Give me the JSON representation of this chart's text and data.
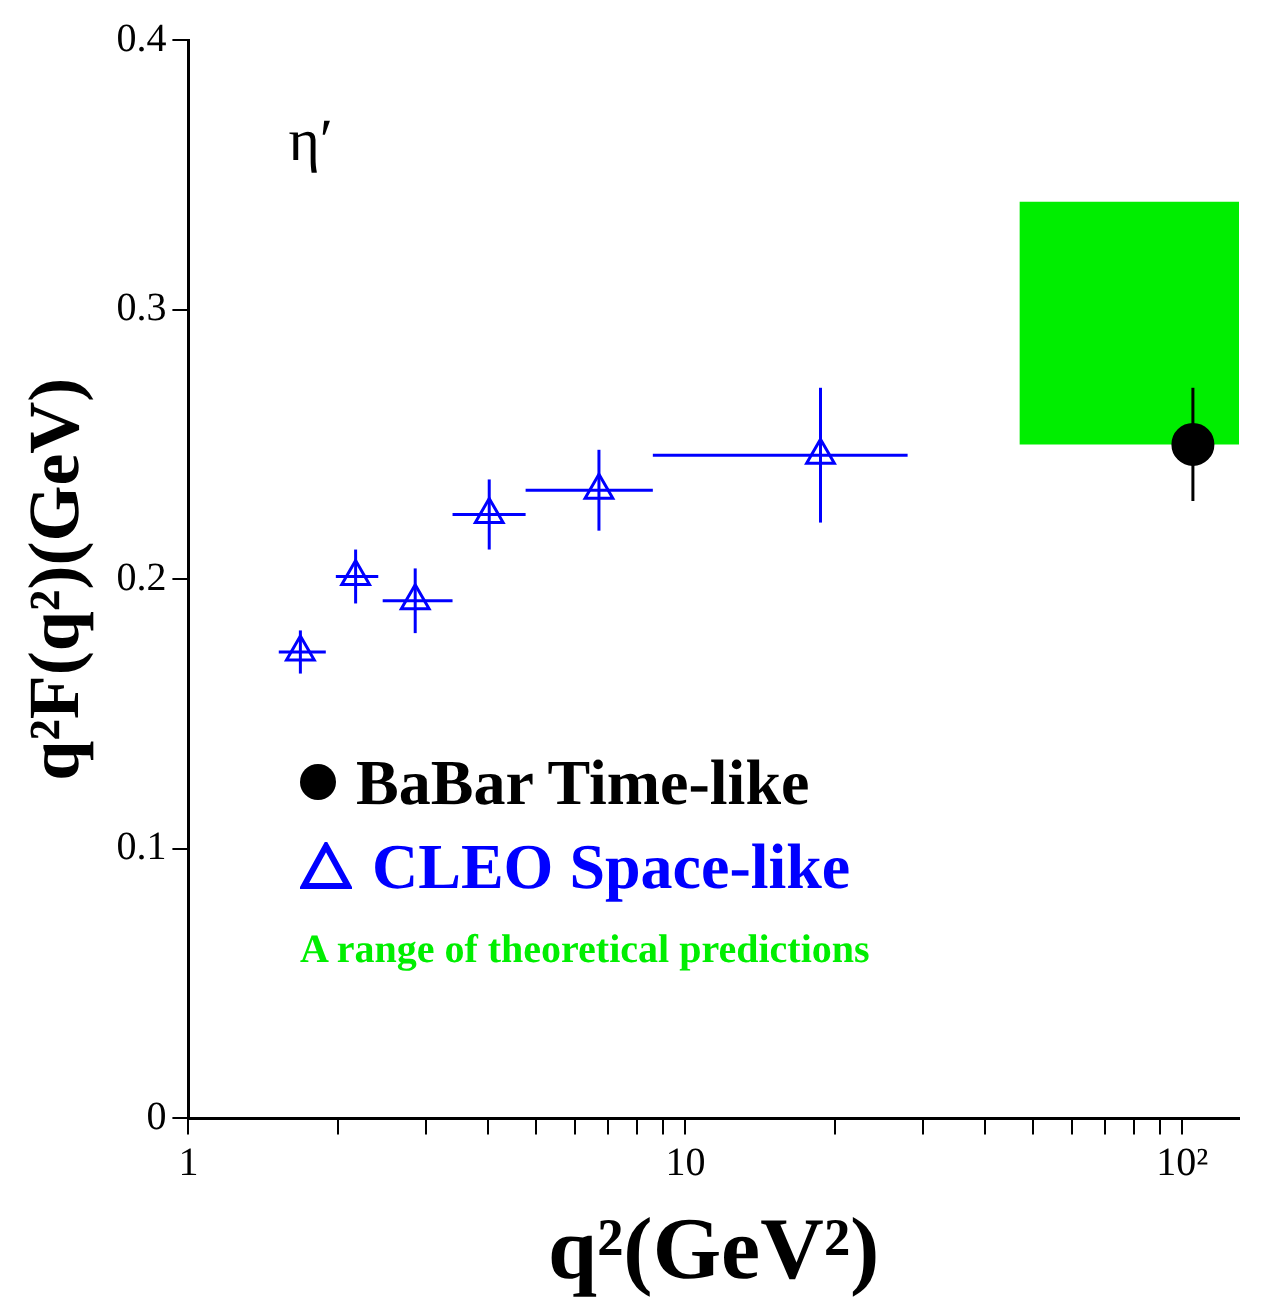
{
  "chart_data": {
    "type": "scatter",
    "xlabel": "q²(GeV²)",
    "ylabel": "q²F(q²)(GeV)",
    "log": "x",
    "xlim": [
      1,
      130
    ],
    "xticks": [
      1,
      {
        "value": 2,
        "label": null
      },
      {
        "value": 3,
        "label": null
      },
      {
        "value": 4,
        "label": null
      },
      {
        "value": 5,
        "label": null
      },
      {
        "value": 6,
        "label": null
      },
      {
        "value": 7,
        "label": null
      },
      {
        "value": 8,
        "label": null
      },
      {
        "value": 9,
        "label": null
      },
      10,
      {
        "value": 20,
        "label": null
      },
      {
        "value": 30,
        "label": null
      },
      {
        "value": 40,
        "label": null
      },
      {
        "value": 50,
        "label": null
      },
      {
        "value": 60,
        "label": null
      },
      {
        "value": 70,
        "label": null
      },
      {
        "value": 80,
        "label": null
      },
      {
        "value": 90,
        "label": null
      },
      {
        "value": 100,
        "label": "10²"
      }
    ],
    "ylim": [
      0,
      0.4
    ],
    "yticks": [
      0,
      0.1,
      0.2,
      0.3,
      0.4
    ],
    "grid": false,
    "legend": "bottom left",
    "annotations": [
      "η′"
    ],
    "series": [
      {
        "name": "BaBar Time-like",
        "type": "scatter",
        "marker": "circle",
        "color": "#000000",
        "x": [
          105
        ],
        "values": [
          0.25
        ],
        "errors": [
          0.021
        ]
      },
      {
        "name": "CLEO Space-like",
        "type": "scatter",
        "marker": "triangle",
        "color": "#0000ff",
        "x": [
          1.68,
          2.17,
          2.86,
          4.03,
          6.7,
          18.7
        ],
        "values": [
          0.173,
          0.201,
          0.192,
          0.224,
          0.233,
          0.246
        ],
        "errors": [
          0.008,
          0.01,
          0.012,
          0.013,
          0.015,
          0.025
        ],
        "xerrors": [
          [
            1.52,
            1.89
          ],
          [
            1.98,
            2.41
          ],
          [
            2.46,
            3.4
          ],
          [
            3.4,
            4.77
          ],
          [
            4.77,
            8.6
          ],
          [
            8.6,
            28
          ]
        ]
      },
      {
        "name": "A range of theoretical predictions",
        "type": "area",
        "color": "#00ee00",
        "x": [
          47,
          130
        ],
        "values": [
          null,
          null
        ],
        "lower": [
          0.25,
          0.25
        ],
        "upper": [
          0.34,
          0.34
        ]
      }
    ]
  }
}
